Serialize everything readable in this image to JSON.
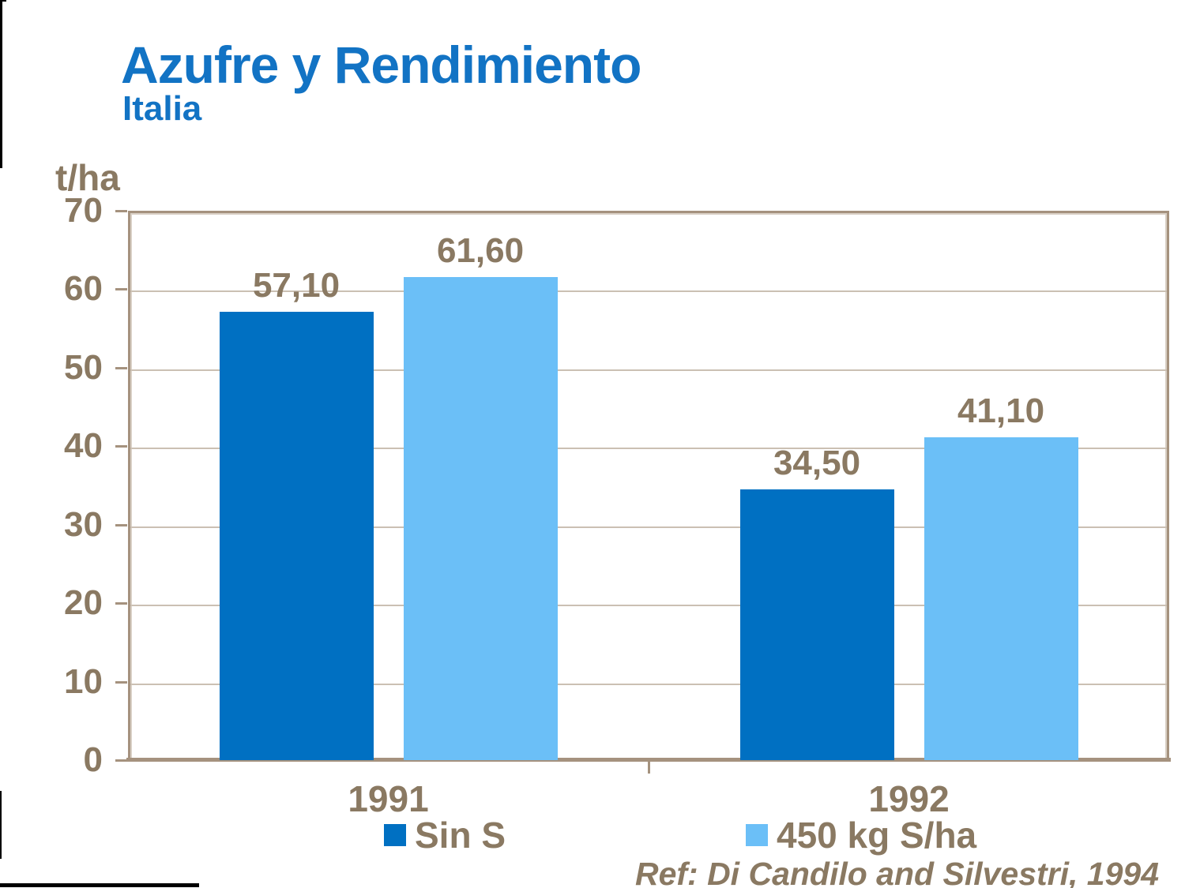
{
  "slide": {
    "title": "Azufre y Rendimiento",
    "subtitle": "Italia",
    "reference": "Ref: Di Candilo and Silvestri, 1994"
  },
  "chart_data": {
    "type": "bar",
    "title": "Azufre y Rendimiento",
    "subtitle": "Italia",
    "xlabel": "",
    "ylabel": "t/ha",
    "categories": [
      "1991",
      "1992"
    ],
    "series": [
      {
        "name": "Sin S",
        "color": "#0070C2",
        "values": [
          57.1,
          34.5
        ],
        "value_labels": [
          "57,10",
          "34,50"
        ]
      },
      {
        "name": "450 kg S/ha",
        "color": "#6BBFF7",
        "values": [
          61.6,
          41.1
        ],
        "value_labels": [
          "61,60",
          "41,10"
        ]
      }
    ],
    "ylim": [
      0,
      70
    ],
    "yticks": [
      0,
      10,
      20,
      30,
      40,
      50,
      60,
      70
    ],
    "grid": true,
    "legend_position": "bottom",
    "decimal_separator": "comma",
    "reference": "Ref: Di Candilo and Silvestri, 1994"
  },
  "colors": {
    "title_blue": "#1273C4",
    "text_taupe": "#8A7962",
    "gridline": "#CBC0B3",
    "plot_border": "#A5927E",
    "bar_dark_blue": "#0070C2",
    "bar_light_blue": "#6BBFF7",
    "background": "#FFFFFF"
  }
}
